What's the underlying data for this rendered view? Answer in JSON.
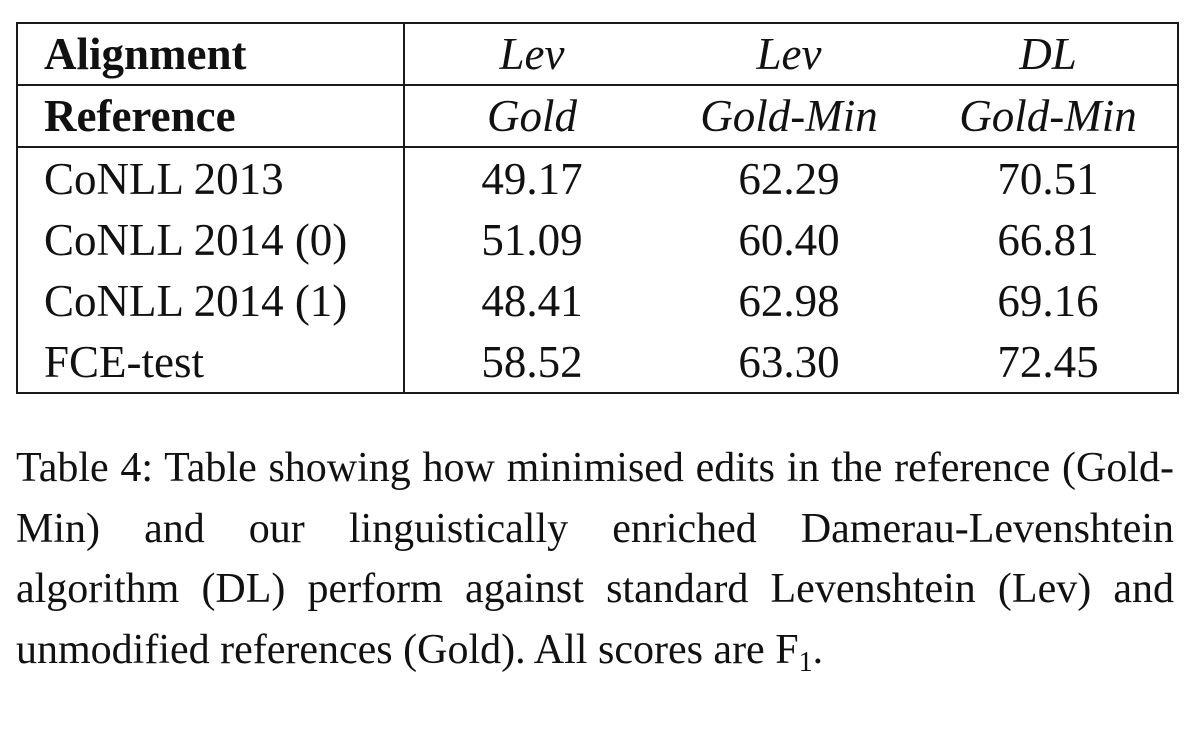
{
  "table": {
    "header_rows": [
      {
        "label": "Alignment",
        "cells": [
          "Lev",
          "Lev",
          "DL"
        ]
      },
      {
        "label": "Reference",
        "cells": [
          "Gold",
          "Gold-Min",
          "Gold-Min"
        ]
      }
    ],
    "rows": [
      {
        "label": "CoNLL 2013",
        "cells": [
          "49.17",
          "62.29",
          "70.51"
        ]
      },
      {
        "label": "CoNLL 2014 (0)",
        "cells": [
          "51.09",
          "60.40",
          "66.81"
        ]
      },
      {
        "label": "CoNLL 2014 (1)",
        "cells": [
          "48.41",
          "62.98",
          "69.16"
        ]
      },
      {
        "label": "FCE-test",
        "cells": [
          "58.52",
          "63.30",
          "72.45"
        ]
      }
    ]
  },
  "caption": {
    "label": "Table 4:",
    "text": "Table showing how minimised edits in the reference (Gold-Min) and our linguistically enriched Damerau-Levenshtein algorithm (DL) perform against standard Levenshtein (Lev) and unmodified references (Gold). All scores are F",
    "subscript": "1",
    "end": "."
  }
}
